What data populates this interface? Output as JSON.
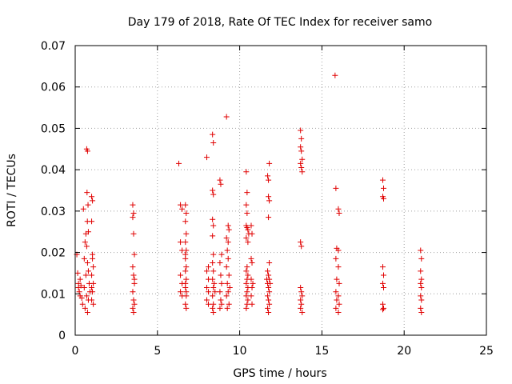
{
  "chart_data": {
    "type": "scatter",
    "title": "Day 179 of 2018, Rate Of TEC Index for receiver samo",
    "xlabel": "GPS time / hours",
    "ylabel": "ROTI / TECUs",
    "xlim": [
      0,
      25
    ],
    "ylim": [
      0,
      0.07
    ],
    "xticks": [
      "0",
      "5",
      "10",
      "15",
      "20",
      "25"
    ],
    "yticks": [
      "0",
      "0.01",
      "0.02",
      "0.03",
      "0.04",
      "0.05",
      "0.06",
      "0.07"
    ],
    "grid": true,
    "marker": "+",
    "color": "#e00000",
    "series": [
      {
        "name": "samo",
        "points": [
          [
            0.1,
            0.0195
          ],
          [
            0.15,
            0.015
          ],
          [
            0.2,
            0.0125
          ],
          [
            0.25,
            0.0105
          ],
          [
            0.3,
            0.0095
          ],
          [
            0.35,
            0.012
          ],
          [
            0.4,
            0.009
          ],
          [
            0.45,
            0.0075
          ],
          [
            0.2,
            0.0115
          ],
          [
            0.3,
            0.0135
          ],
          [
            0.5,
            0.0305
          ],
          [
            0.55,
            0.0185
          ],
          [
            0.6,
            0.0225
          ],
          [
            0.65,
            0.0245
          ],
          [
            0.7,
            0.0215
          ],
          [
            0.75,
            0.0175
          ],
          [
            0.8,
            0.0155
          ],
          [
            0.85,
            0.0125
          ],
          [
            0.9,
            0.0105
          ],
          [
            0.7,
            0.0095
          ],
          [
            0.6,
            0.0065
          ],
          [
            0.75,
            0.0055
          ],
          [
            0.8,
            0.0085
          ],
          [
            0.65,
            0.0145
          ],
          [
            0.55,
            0.0115
          ],
          [
            0.7,
            0.045
          ],
          [
            0.75,
            0.0445
          ],
          [
            0.72,
            0.0345
          ],
          [
            0.78,
            0.0315
          ],
          [
            0.74,
            0.0275
          ],
          [
            0.8,
            0.025
          ],
          [
            1.0,
            0.0335
          ],
          [
            1.05,
            0.0325
          ],
          [
            1.0,
            0.0275
          ],
          [
            1.05,
            0.0195
          ],
          [
            1.1,
            0.0165
          ],
          [
            1.0,
            0.0145
          ],
          [
            1.1,
            0.0125
          ],
          [
            1.05,
            0.0105
          ],
          [
            1.0,
            0.0085
          ],
          [
            1.1,
            0.0075
          ],
          [
            1.05,
            0.0185
          ],
          [
            1.0,
            0.0115
          ],
          [
            3.5,
            0.0315
          ],
          [
            3.55,
            0.0295
          ],
          [
            3.5,
            0.0285
          ],
          [
            3.55,
            0.0245
          ],
          [
            3.6,
            0.0195
          ],
          [
            3.5,
            0.0165
          ],
          [
            3.55,
            0.0145
          ],
          [
            3.6,
            0.0125
          ],
          [
            3.5,
            0.0105
          ],
          [
            3.55,
            0.0085
          ],
          [
            3.6,
            0.0075
          ],
          [
            3.5,
            0.0065
          ],
          [
            3.55,
            0.0055
          ],
          [
            3.6,
            0.0135
          ],
          [
            6.3,
            0.0415
          ],
          [
            6.4,
            0.0315
          ],
          [
            6.5,
            0.0305
          ],
          [
            6.4,
            0.0225
          ],
          [
            6.5,
            0.0205
          ],
          [
            6.4,
            0.0145
          ],
          [
            6.5,
            0.0125
          ],
          [
            6.4,
            0.0105
          ],
          [
            6.5,
            0.0095
          ],
          [
            6.7,
            0.0315
          ],
          [
            6.75,
            0.0295
          ],
          [
            6.7,
            0.0275
          ],
          [
            6.75,
            0.0245
          ],
          [
            6.7,
            0.0225
          ],
          [
            6.75,
            0.0205
          ],
          [
            6.7,
            0.0185
          ],
          [
            6.75,
            0.0165
          ],
          [
            6.7,
            0.0155
          ],
          [
            6.75,
            0.0135
          ],
          [
            6.7,
            0.0115
          ],
          [
            6.75,
            0.0095
          ],
          [
            6.7,
            0.0075
          ],
          [
            6.75,
            0.0065
          ],
          [
            6.7,
            0.0125
          ],
          [
            6.75,
            0.0105
          ],
          [
            6.7,
            0.0195
          ],
          [
            8.0,
            0.043
          ],
          [
            8.1,
            0.0165
          ],
          [
            8.0,
            0.0155
          ],
          [
            8.1,
            0.0135
          ],
          [
            8.0,
            0.0115
          ],
          [
            8.1,
            0.0105
          ],
          [
            8.0,
            0.0085
          ],
          [
            8.1,
            0.0075
          ],
          [
            8.35,
            0.0485
          ],
          [
            8.4,
            0.0465
          ],
          [
            8.35,
            0.035
          ],
          [
            8.4,
            0.034
          ],
          [
            8.35,
            0.028
          ],
          [
            8.4,
            0.0265
          ],
          [
            8.35,
            0.024
          ],
          [
            8.4,
            0.0195
          ],
          [
            8.35,
            0.0175
          ],
          [
            8.4,
            0.0155
          ],
          [
            8.35,
            0.0135
          ],
          [
            8.4,
            0.0115
          ],
          [
            8.35,
            0.0095
          ],
          [
            8.4,
            0.0075
          ],
          [
            8.35,
            0.0065
          ],
          [
            8.4,
            0.0055
          ],
          [
            8.45,
            0.0125
          ],
          [
            8.5,
            0.0105
          ],
          [
            8.8,
            0.0375
          ],
          [
            8.85,
            0.0365
          ],
          [
            8.9,
            0.0195
          ],
          [
            8.8,
            0.0175
          ],
          [
            8.85,
            0.0145
          ],
          [
            8.9,
            0.0125
          ],
          [
            8.8,
            0.0105
          ],
          [
            8.85,
            0.0085
          ],
          [
            8.9,
            0.0075
          ],
          [
            8.8,
            0.0065
          ],
          [
            9.2,
            0.0528
          ],
          [
            9.3,
            0.0265
          ],
          [
            9.35,
            0.0255
          ],
          [
            9.2,
            0.0235
          ],
          [
            9.3,
            0.0225
          ],
          [
            9.25,
            0.0205
          ],
          [
            9.3,
            0.0185
          ],
          [
            9.2,
            0.0165
          ],
          [
            9.35,
            0.0145
          ],
          [
            9.25,
            0.0125
          ],
          [
            9.3,
            0.0105
          ],
          [
            9.2,
            0.0095
          ],
          [
            9.35,
            0.0075
          ],
          [
            9.25,
            0.0065
          ],
          [
            9.4,
            0.0115
          ],
          [
            10.4,
            0.0395
          ],
          [
            10.45,
            0.0345
          ],
          [
            10.4,
            0.0315
          ],
          [
            10.45,
            0.0295
          ],
          [
            10.4,
            0.0265
          ],
          [
            10.45,
            0.026
          ],
          [
            10.5,
            0.0255
          ],
          [
            10.55,
            0.0245
          ],
          [
            10.4,
            0.0235
          ],
          [
            10.5,
            0.0225
          ],
          [
            10.45,
            0.0165
          ],
          [
            10.4,
            0.0155
          ],
          [
            10.5,
            0.0145
          ],
          [
            10.45,
            0.0135
          ],
          [
            10.4,
            0.0125
          ],
          [
            10.5,
            0.0115
          ],
          [
            10.45,
            0.0105
          ],
          [
            10.4,
            0.0095
          ],
          [
            10.5,
            0.0085
          ],
          [
            10.45,
            0.0075
          ],
          [
            10.4,
            0.0065
          ],
          [
            10.7,
            0.0265
          ],
          [
            10.75,
            0.0245
          ],
          [
            10.7,
            0.0185
          ],
          [
            10.75,
            0.0175
          ],
          [
            10.7,
            0.0135
          ],
          [
            10.75,
            0.0115
          ],
          [
            10.7,
            0.0095
          ],
          [
            10.75,
            0.0075
          ],
          [
            10.8,
            0.0125
          ],
          [
            11.7,
            0.0385
          ],
          [
            11.75,
            0.0375
          ],
          [
            11.8,
            0.0415
          ],
          [
            11.75,
            0.0335
          ],
          [
            11.8,
            0.0325
          ],
          [
            11.75,
            0.0285
          ],
          [
            11.8,
            0.0175
          ],
          [
            11.7,
            0.0155
          ],
          [
            11.75,
            0.0145
          ],
          [
            11.8,
            0.0135
          ],
          [
            11.7,
            0.0125
          ],
          [
            11.75,
            0.0115
          ],
          [
            11.8,
            0.0105
          ],
          [
            11.7,
            0.0095
          ],
          [
            11.75,
            0.0085
          ],
          [
            11.8,
            0.0075
          ],
          [
            11.7,
            0.0065
          ],
          [
            11.75,
            0.0055
          ],
          [
            11.65,
            0.0135
          ],
          [
            11.85,
            0.0125
          ],
          [
            13.7,
            0.0495
          ],
          [
            13.75,
            0.0475
          ],
          [
            13.7,
            0.0455
          ],
          [
            13.75,
            0.0445
          ],
          [
            13.8,
            0.0425
          ],
          [
            13.7,
            0.0415
          ],
          [
            13.75,
            0.0405
          ],
          [
            13.8,
            0.0395
          ],
          [
            13.7,
            0.0225
          ],
          [
            13.75,
            0.0215
          ],
          [
            13.7,
            0.0115
          ],
          [
            13.75,
            0.0105
          ],
          [
            13.8,
            0.0095
          ],
          [
            13.7,
            0.0085
          ],
          [
            13.75,
            0.0075
          ],
          [
            13.7,
            0.0065
          ],
          [
            13.8,
            0.0055
          ],
          [
            15.8,
            0.0628
          ],
          [
            15.85,
            0.0355
          ],
          [
            16.0,
            0.0305
          ],
          [
            16.05,
            0.0295
          ],
          [
            15.9,
            0.021
          ],
          [
            16.0,
            0.0205
          ],
          [
            15.85,
            0.0185
          ],
          [
            16.0,
            0.0165
          ],
          [
            15.9,
            0.0135
          ],
          [
            16.05,
            0.0125
          ],
          [
            15.85,
            0.0105
          ],
          [
            16.0,
            0.0095
          ],
          [
            15.9,
            0.0085
          ],
          [
            16.05,
            0.0075
          ],
          [
            15.85,
            0.0065
          ],
          [
            16.0,
            0.0055
          ],
          [
            18.7,
            0.0375
          ],
          [
            18.75,
            0.0355
          ],
          [
            18.7,
            0.0335
          ],
          [
            18.75,
            0.033
          ],
          [
            18.7,
            0.0165
          ],
          [
            18.75,
            0.0145
          ],
          [
            18.7,
            0.0125
          ],
          [
            18.75,
            0.0115
          ],
          [
            18.7,
            0.0075
          ],
          [
            18.75,
            0.0065
          ],
          [
            18.7,
            0.0062
          ],
          [
            21.0,
            0.0205
          ],
          [
            21.05,
            0.0185
          ],
          [
            21.0,
            0.0155
          ],
          [
            21.05,
            0.0135
          ],
          [
            21.0,
            0.0125
          ],
          [
            21.05,
            0.0115
          ],
          [
            21.0,
            0.0095
          ],
          [
            21.05,
            0.0085
          ],
          [
            21.0,
            0.0065
          ],
          [
            21.05,
            0.0055
          ]
        ]
      }
    ]
  }
}
